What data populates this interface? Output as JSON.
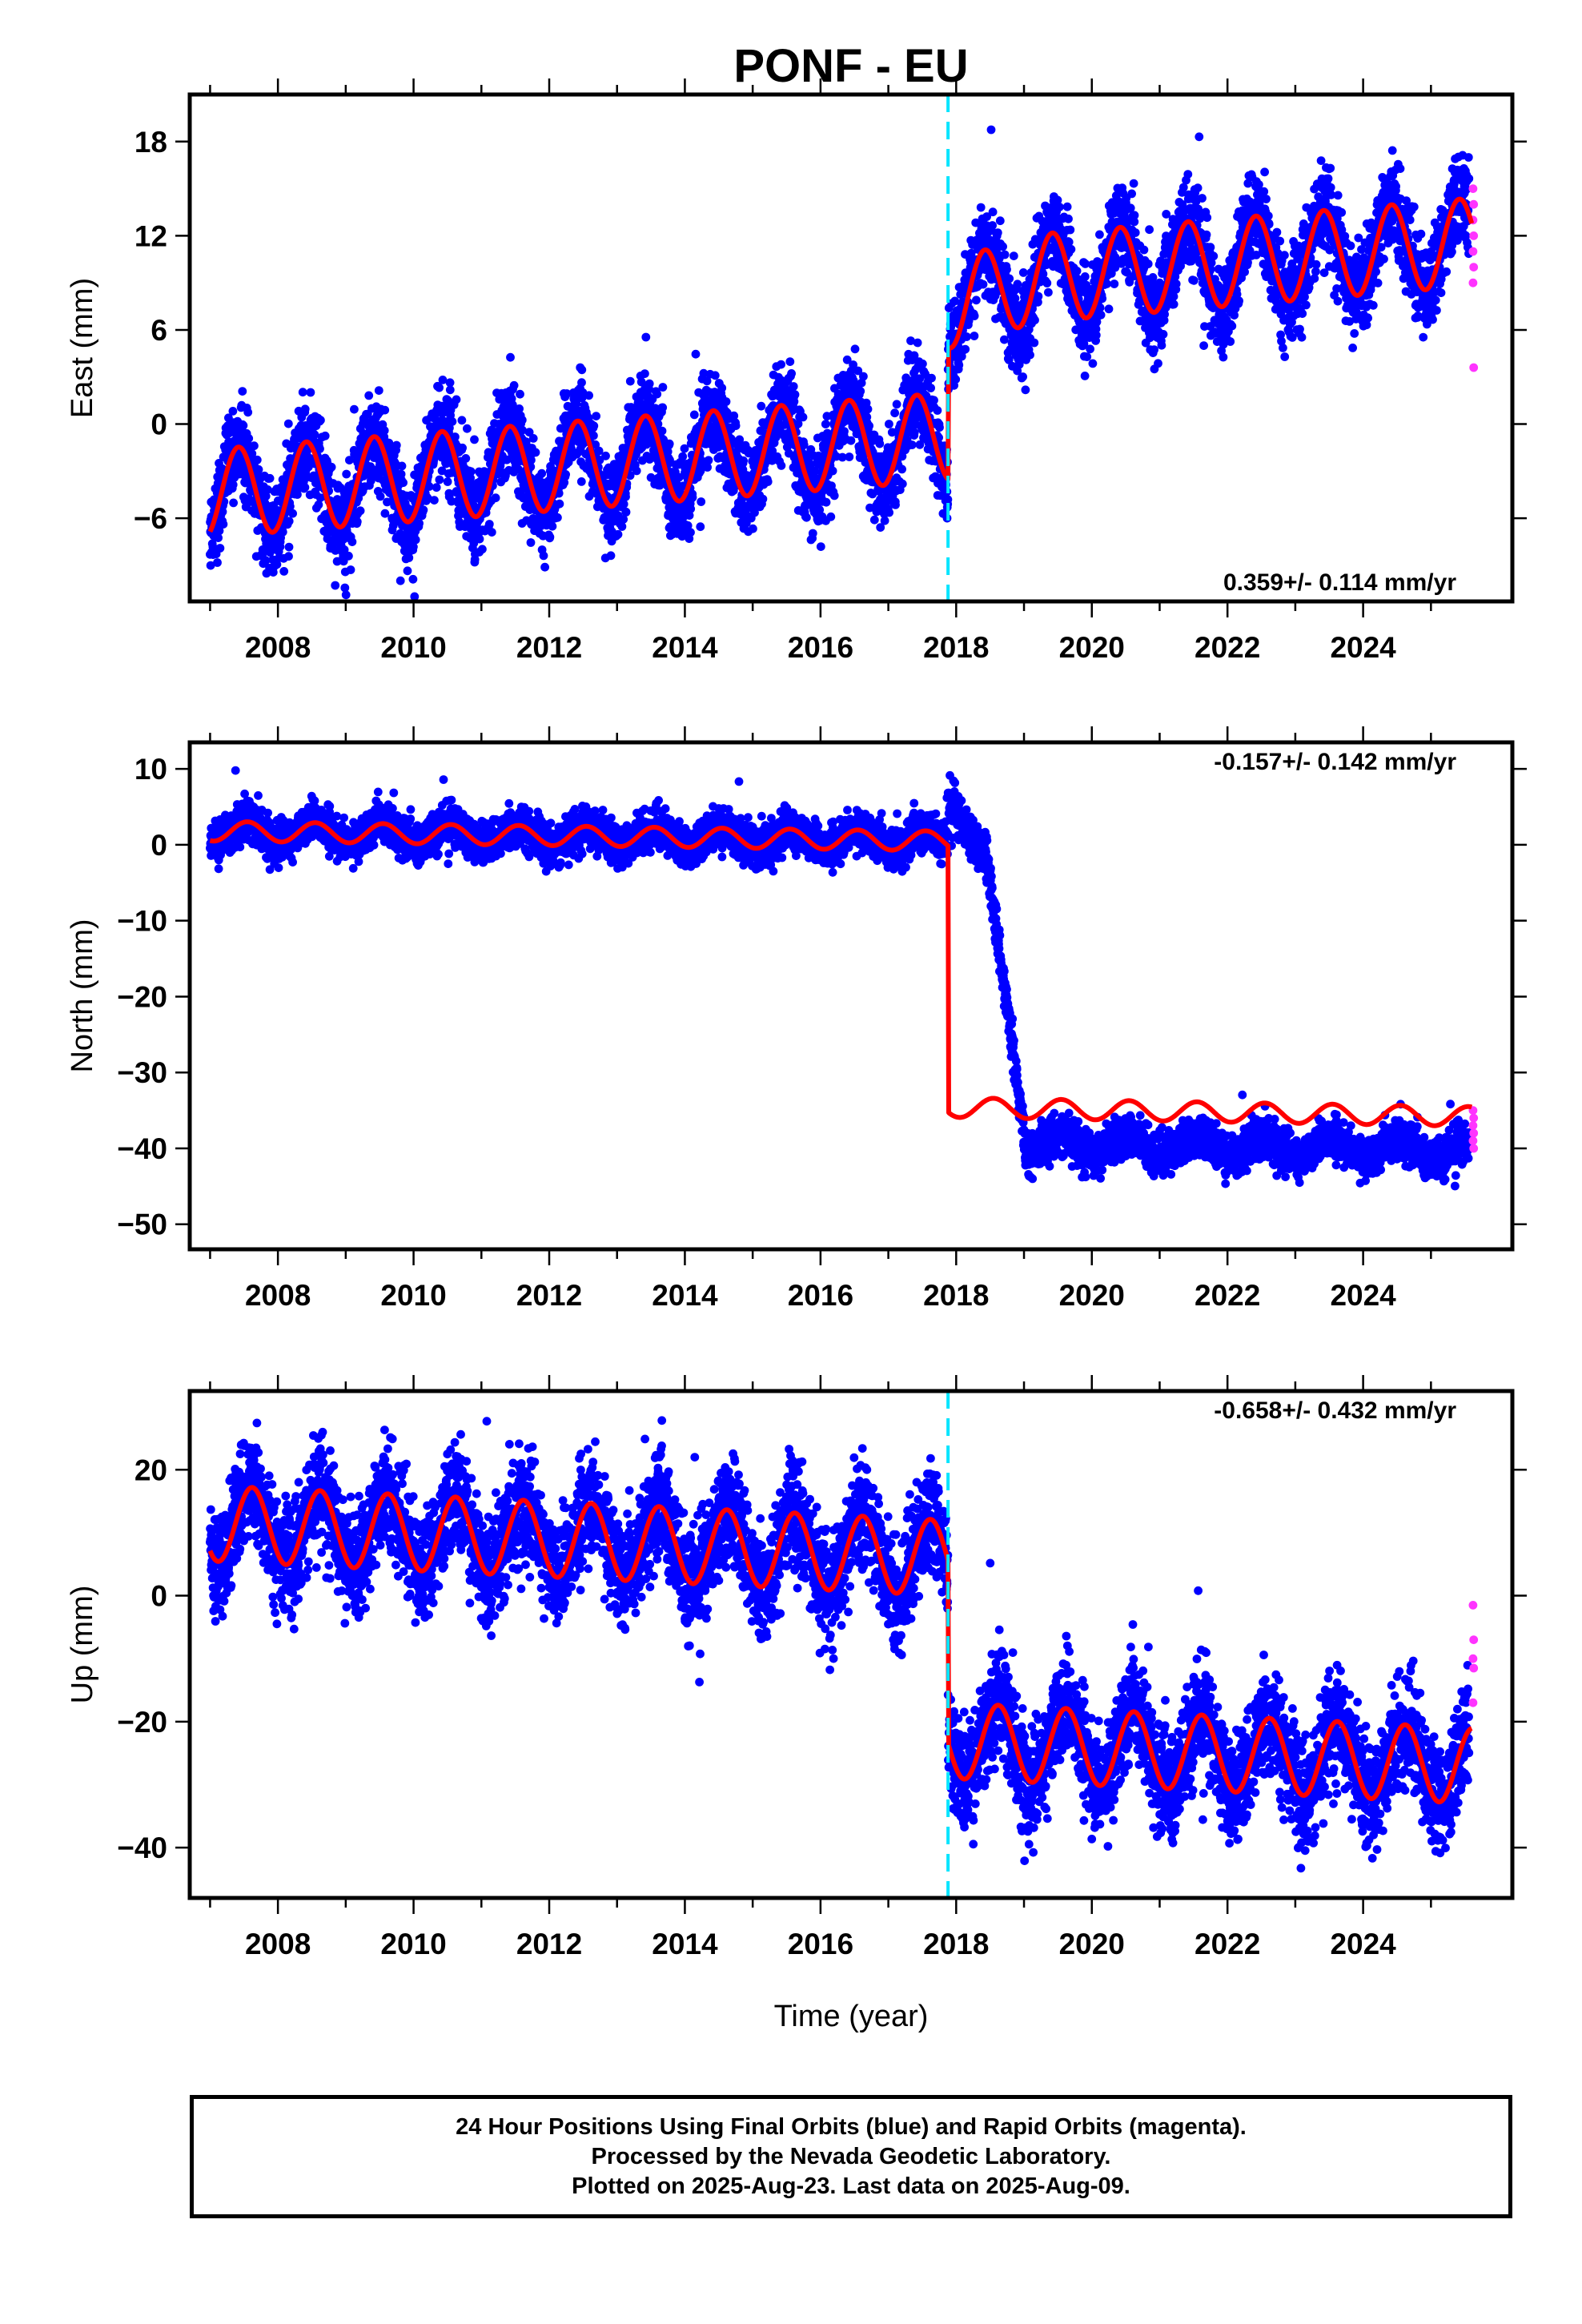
{
  "chart_data": {
    "type": "scatter",
    "title": "PONF - EU",
    "xlabel": "Time (year)",
    "x_ticks": [
      "2008",
      "2010",
      "2012",
      "2014",
      "2016",
      "2018",
      "2020",
      "2022",
      "2024"
    ],
    "xlim": [
      2006.7,
      2026.2
    ],
    "event_year": 2017.88,
    "last_year": 2025.6,
    "colors": {
      "final": "#0000ff",
      "rapid": "#ff33ff",
      "model": "#ff0000",
      "event": "#00e5ff"
    },
    "panels": [
      {
        "ylabel": "East (mm)",
        "ylim": [
          -11.3,
          21.0
        ],
        "yticks": [
          "18",
          "12",
          "6",
          "0",
          "-6"
        ],
        "rate_label": "0.359+/- 0.114 mm/yr",
        "rate_position": "bottom-right",
        "amplitude": 2.8,
        "phase_peak": 0.42,
        "noise": 1.4,
        "segments": [
          {
            "x": [
              2007.0,
              2017.88
            ],
            "y": [
              -4.4,
              -0.8
            ]
          },
          {
            "x": [
              2017.88,
              2019.2
            ],
            "y": [
              7.6,
              9.3
            ]
          },
          {
            "x": [
              2019.2,
              2025.6
            ],
            "y": [
              9.3,
              11.6
            ]
          }
        ],
        "rapid_points": [
          15.0,
          14.0,
          13.0,
          12.0,
          11.0,
          10.0,
          9.0,
          3.6
        ],
        "series": [
          {
            "name": "Final Orbits",
            "color": "blue"
          },
          {
            "name": "Rapid Orbits",
            "color": "magenta"
          },
          {
            "name": "Model",
            "color": "red"
          }
        ]
      },
      {
        "ylabel": "North (mm)",
        "ylim": [
          -53.3,
          13.5
        ],
        "yticks": [
          "10",
          "0",
          "-10",
          "-20",
          "-30",
          "-40",
          "-50"
        ],
        "rate_label": "-0.157+/- 0.142 mm/yr",
        "rate_position": "top-right",
        "amplitude": 1.3,
        "phase_peak": 0.55,
        "noise": 1.3,
        "segments": [
          {
            "x": [
              2007.0,
              2017.88
            ],
            "y": [
              1.8,
              0.5
            ]
          },
          {
            "x": [
              2017.88,
              2025.6
            ],
            "y": [
              -34.6,
              -35.8
            ]
          }
        ],
        "data_transition": {
          "x": [
            2017.88,
            2019.0
          ],
          "y": [
            6.0,
            -37.5
          ]
        },
        "post_offset": -4.5,
        "rapid_points": [
          -35.0,
          -36.0,
          -37.0,
          -38.0,
          -39.0,
          -40.0
        ],
        "series": [
          {
            "name": "Final Orbits",
            "color": "blue"
          },
          {
            "name": "Rapid Orbits",
            "color": "magenta"
          },
          {
            "name": "Model",
            "color": "red"
          }
        ]
      },
      {
        "ylabel": "Up (mm)",
        "ylim": [
          -48.0,
          32.5
        ],
        "yticks": [
          "20",
          "0",
          "-20",
          "-40"
        ],
        "rate_label": "-0.658+/- 0.432 mm/yr",
        "rate_position": "top-right",
        "amplitude": 6.0,
        "phase_peak": 0.62,
        "noise": 4.2,
        "segments": [
          {
            "x": [
              2007.0,
              2017.88
            ],
            "y": [
              11.5,
              6.0
            ]
          },
          {
            "x": [
              2017.88,
              2025.6
            ],
            "y": [
              -23.0,
              -27.0
            ]
          }
        ],
        "rapid_points": [
          -1.5,
          -7.0,
          -10.0,
          -11.5,
          -17.0
        ],
        "series": [
          {
            "name": "Final Orbits",
            "color": "blue"
          },
          {
            "name": "Rapid Orbits",
            "color": "magenta"
          },
          {
            "name": "Model",
            "color": "red"
          }
        ]
      }
    ]
  },
  "caption": {
    "line1": "24 Hour Positions Using Final Orbits (blue) and Rapid Orbits (magenta).",
    "line2": "Processed by the Nevada Geodetic Laboratory.",
    "line3": "Plotted on 2025-Aug-23. Last data on 2025-Aug-09."
  }
}
